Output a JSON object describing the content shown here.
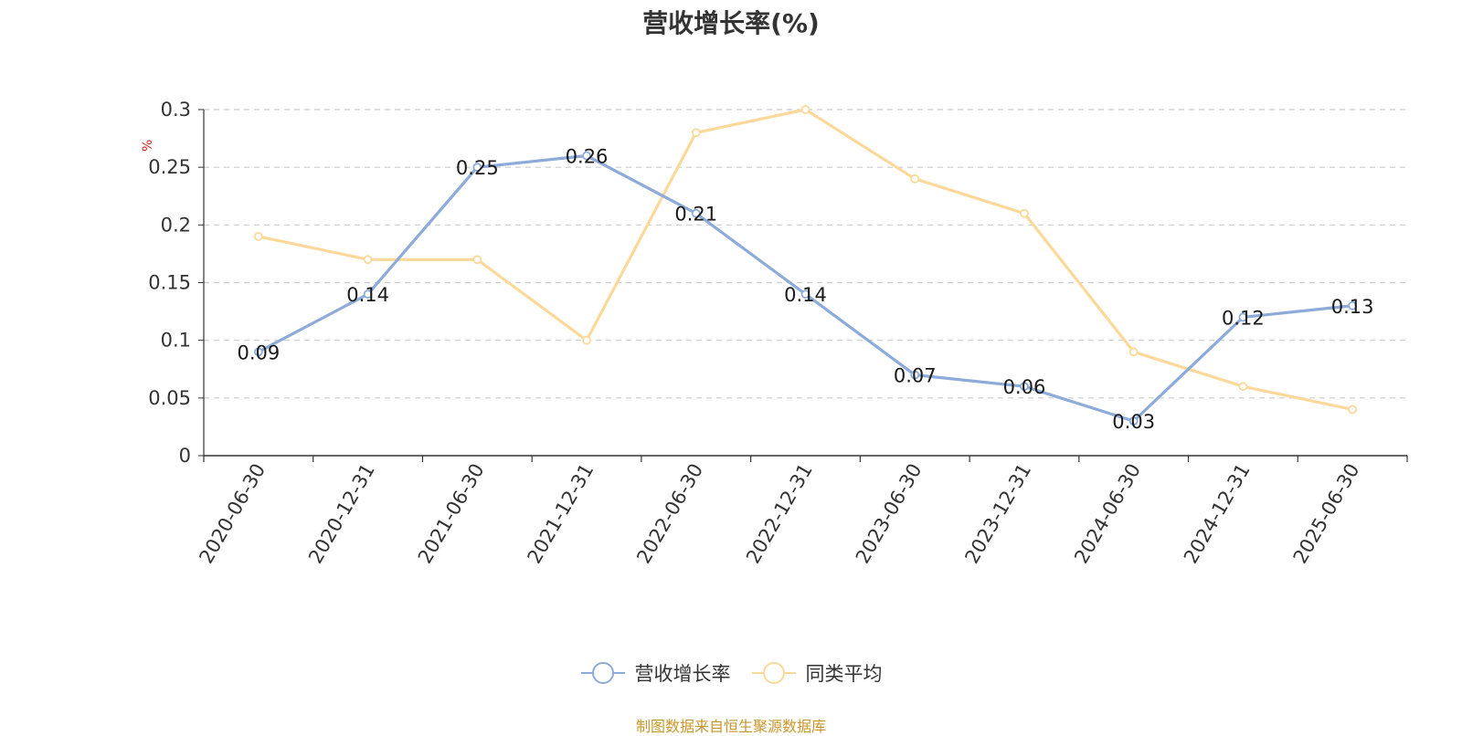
{
  "title": "营收增长率(%)",
  "source": "制图数据来自恒生聚源数据库",
  "colors": {
    "series1": "#8dabd8",
    "series2": "#fcd99a",
    "source": "#c8962a",
    "unit": "#e02020",
    "grid": "#cccccc",
    "axis": "#333333"
  },
  "chart_data": {
    "type": "line",
    "title": "营收增长率(%)",
    "y_unit": "%",
    "ylim": [
      0,
      0.3
    ],
    "yticks": [
      0,
      0.05,
      0.1,
      0.15,
      0.2,
      0.25,
      0.3
    ],
    "ytick_labels": [
      "0",
      "0.05",
      "0.1",
      "0.15",
      "0.2",
      "0.25",
      "0.3"
    ],
    "grid": true,
    "legend_position": "bottom-center",
    "categories": [
      "2020-06-30",
      "2020-12-31",
      "2021-06-30",
      "2021-12-31",
      "2022-06-30",
      "2022-12-31",
      "2023-06-30",
      "2023-12-31",
      "2024-06-30",
      "2024-12-31",
      "2025-06-30"
    ],
    "series": [
      {
        "name": "营收增长率",
        "values": [
          0.09,
          0.14,
          0.25,
          0.26,
          0.21,
          0.14,
          0.07,
          0.06,
          0.03,
          0.12,
          0.13
        ],
        "data_labels": true
      },
      {
        "name": "同类平均",
        "values": [
          0.19,
          0.17,
          0.17,
          0.1,
          0.28,
          0.3,
          0.24,
          0.21,
          0.09,
          0.06,
          0.04
        ],
        "data_labels": false
      }
    ]
  }
}
